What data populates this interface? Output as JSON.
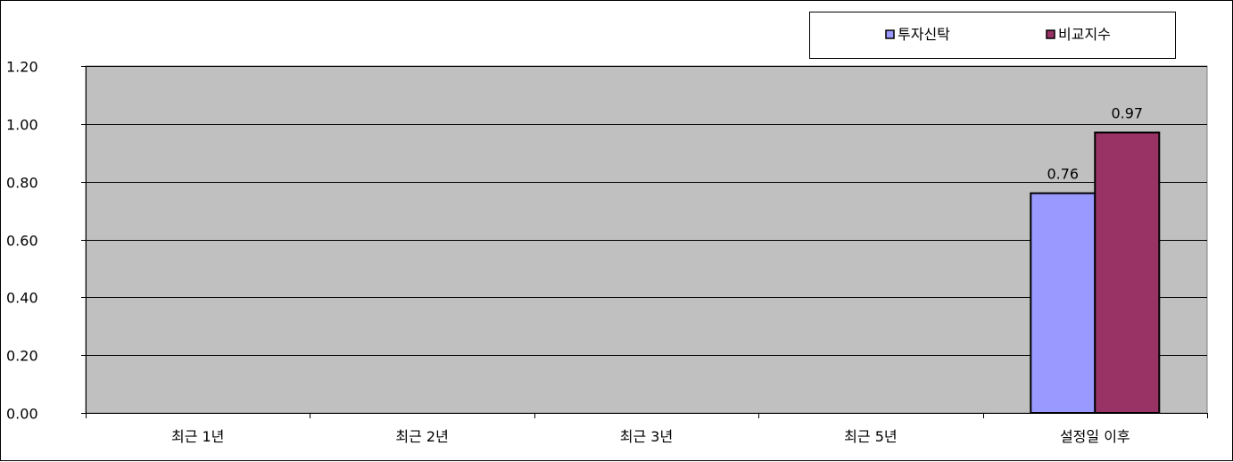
{
  "chart_data": {
    "type": "bar",
    "categories": [
      "최근 1년",
      "최근 2년",
      "최근 3년",
      "최근 5년",
      "설정일 이후"
    ],
    "series": [
      {
        "name": "투자신탁",
        "values": [
          null,
          null,
          null,
          null,
          0.76
        ],
        "color": "#9999ff"
      },
      {
        "name": "비교지수",
        "values": [
          null,
          null,
          null,
          null,
          0.97
        ],
        "color": "#993366"
      }
    ],
    "ylim": [
      0,
      1.2
    ],
    "yticks": [
      "0.00",
      "0.20",
      "0.40",
      "0.60",
      "0.80",
      "1.00",
      "1.20"
    ],
    "data_labels": [
      "0.76",
      "0.97"
    ],
    "grid": true,
    "plot_background": "#c0c0c0",
    "legend_position": "top-right",
    "title": "",
    "xlabel": "",
    "ylabel": ""
  }
}
